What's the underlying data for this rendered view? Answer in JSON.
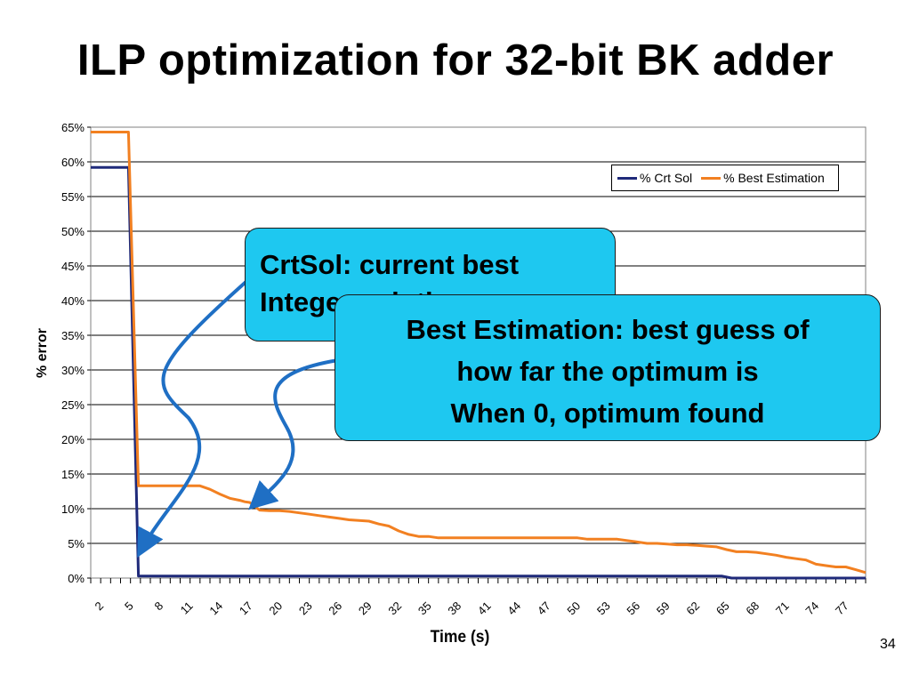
{
  "slide": {
    "title": "ILP optimization for 32-bit BK adder",
    "page_number": "34",
    "callout_1": [
      "CrtSol: current best",
      "Integer solution"
    ],
    "callout_2": [
      "Best Estimation: best guess of",
      "how far the optimum is",
      "When 0, optimum found"
    ]
  },
  "colors": {
    "crt_sol": "#1f2a7a",
    "best_estimation": "#f28021",
    "callout": "#1ec8f0",
    "arrow": "#1f6fc4"
  },
  "chart_data": {
    "type": "line",
    "title": "",
    "xlabel": "Time (s)",
    "ylabel": "% error",
    "xlim": [
      1,
      79
    ],
    "ylim": [
      0,
      65
    ],
    "ytick_step": 5,
    "ytick_labels": [
      "0%",
      "5%",
      "10%",
      "15%",
      "20%",
      "25%",
      "30%",
      "35%",
      "40%",
      "45%",
      "50%",
      "55%",
      "60%",
      "65%"
    ],
    "xtick_labels": [
      "2",
      "5",
      "8",
      "11",
      "14",
      "17",
      "20",
      "23",
      "26",
      "29",
      "32",
      "35",
      "38",
      "41",
      "44",
      "47",
      "50",
      "53",
      "56",
      "59",
      "62",
      "65",
      "68",
      "71",
      "74",
      "77"
    ],
    "grid": "horizontal",
    "legend_position": "top-right",
    "series": [
      {
        "name": "% Crt Sol",
        "x": [
          1,
          4,
          4.8,
          5.8,
          6.8,
          64.5,
          65.5,
          79
        ],
        "y": [
          59.2,
          59.2,
          59.2,
          0.3,
          0.3,
          0.3,
          0,
          0
        ]
      },
      {
        "name": "% Best Estimation",
        "x": [
          1,
          4,
          4.8,
          5.8,
          6.8,
          8,
          10,
          12,
          13,
          14,
          15,
          16,
          16.5,
          17,
          18,
          19,
          20,
          21,
          22,
          23,
          24,
          25,
          26,
          27,
          28,
          29,
          30,
          31,
          32,
          33,
          34,
          35,
          36,
          37,
          38,
          40,
          45,
          50,
          51,
          52,
          53,
          54,
          55,
          56,
          57,
          58,
          59,
          60,
          61,
          62,
          63,
          64,
          65,
          66,
          67,
          68,
          69,
          70,
          71,
          72,
          73,
          74,
          75,
          76,
          77,
          78,
          79
        ],
        "y": [
          64.3,
          64.3,
          64.3,
          13.3,
          13.3,
          13.3,
          13.3,
          13.3,
          12.8,
          12.1,
          11.5,
          11.2,
          11.0,
          10.9,
          9.8,
          9.7,
          9.7,
          9.6,
          9.4,
          9.2,
          9.0,
          8.8,
          8.6,
          8.4,
          8.3,
          8.2,
          7.8,
          7.5,
          6.8,
          6.3,
          6.0,
          6.0,
          5.8,
          5.8,
          5.8,
          5.8,
          5.8,
          5.8,
          5.6,
          5.6,
          5.6,
          5.6,
          5.4,
          5.2,
          5.0,
          5.0,
          4.9,
          4.8,
          4.8,
          4.7,
          4.6,
          4.5,
          4.1,
          3.8,
          3.8,
          3.7,
          3.5,
          3.3,
          3.0,
          2.8,
          2.6,
          2.0,
          1.8,
          1.6,
          1.6,
          1.2,
          0.8
        ]
      }
    ]
  }
}
